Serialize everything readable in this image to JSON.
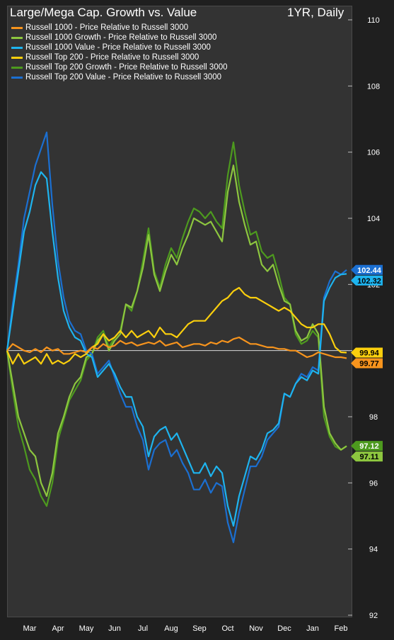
{
  "chart_title": "Large/Mega Cap. Growth vs. Value",
  "chart_period": "1YR, Daily",
  "colors": {
    "background": "#333333",
    "orange": "#f7941d",
    "light_green": "#8dc63f",
    "light_blue": "#1eb4ef",
    "yellow": "#fbcf0d",
    "dark_green": "#4d9a1e",
    "dark_blue": "#1b6fd1"
  },
  "legend": [
    {
      "label": "Russell 1000 - Price Relative to Russell 3000",
      "color": "#f7941d"
    },
    {
      "label": "Russell 1000 Growth - Price Relative to Russell 3000",
      "color": "#8dc63f"
    },
    {
      "label": "Russell 1000 Value - Price Relative to Russell 3000",
      "color": "#1eb4ef"
    },
    {
      "label": "Russell Top 200 - Price Relative to Russell 3000",
      "color": "#fbcf0d"
    },
    {
      "label": "Russell Top 200 Growth - Price Relative to Russell 3000",
      "color": "#4d9a1e"
    },
    {
      "label": "Russell Top 200 Value - Price Relative to Russell 3000",
      "color": "#1b6fd1"
    }
  ],
  "chart_data": {
    "type": "line",
    "x_labels": [
      "Mar",
      "Apr",
      "May",
      "Jun",
      "Jul",
      "Aug",
      "Sep",
      "Oct",
      "Nov",
      "Dec",
      "Jan",
      "Feb"
    ],
    "x_label_positions": [
      0.5,
      1.5,
      2.5,
      3.5,
      4.5,
      5.5,
      6.5,
      7.5,
      8.5,
      9.5,
      10.5,
      11.5
    ],
    "x_range": [
      -0.3,
      11.9
    ],
    "y_ticks": [
      92,
      94,
      96,
      98,
      100,
      102,
      104,
      106,
      108,
      110
    ],
    "ylim": [
      92,
      110
    ],
    "baseline": 100,
    "x": [
      -0.3,
      -0.1,
      0.1,
      0.3,
      0.5,
      0.7,
      0.9,
      1.1,
      1.3,
      1.5,
      1.7,
      1.9,
      2.1,
      2.3,
      2.5,
      2.7,
      2.9,
      3.1,
      3.3,
      3.5,
      3.7,
      3.9,
      4.1,
      4.3,
      4.5,
      4.7,
      4.9,
      5.1,
      5.3,
      5.5,
      5.7,
      5.9,
      6.1,
      6.3,
      6.5,
      6.7,
      6.9,
      7.1,
      7.3,
      7.5,
      7.7,
      7.9,
      8.1,
      8.3,
      8.5,
      8.7,
      8.9,
      9.1,
      9.3,
      9.5,
      9.7,
      9.9,
      10.1,
      10.3,
      10.5,
      10.7,
      10.9,
      11.1,
      11.3,
      11.5,
      11.7
    ],
    "series": [
      {
        "name": "Russell 1000 - Price Relative to Russell 3000",
        "color": "#f7941d",
        "end_value": 99.77,
        "values": [
          100.0,
          100.2,
          100.1,
          100.0,
          99.95,
          100.05,
          99.95,
          100.1,
          100.0,
          100.05,
          99.9,
          99.9,
          99.95,
          100.0,
          99.95,
          100.1,
          100.05,
          100.2,
          100.1,
          100.15,
          100.3,
          100.2,
          100.25,
          100.15,
          100.2,
          100.25,
          100.2,
          100.3,
          100.15,
          100.2,
          100.25,
          100.1,
          100.15,
          100.2,
          100.2,
          100.15,
          100.25,
          100.2,
          100.3,
          100.25,
          100.35,
          100.4,
          100.3,
          100.2,
          100.2,
          100.15,
          100.1,
          100.1,
          100.05,
          100.05,
          100.0,
          100.0,
          99.9,
          99.8,
          99.85,
          99.95,
          99.9,
          99.85,
          99.8,
          99.8,
          99.77
        ]
      },
      {
        "name": "Russell 1000 Growth - Price Relative to Russell 3000",
        "color": "#8dc63f",
        "end_value": 97.11,
        "values": [
          100.0,
          99.0,
          98.0,
          97.5,
          97.0,
          96.8,
          96.0,
          95.6,
          96.3,
          97.5,
          98.0,
          98.6,
          99.0,
          99.2,
          99.8,
          99.9,
          100.3,
          100.5,
          100.0,
          100.3,
          100.5,
          101.4,
          101.3,
          101.8,
          102.5,
          103.5,
          102.3,
          101.8,
          102.4,
          102.9,
          102.6,
          103.1,
          103.5,
          104.0,
          103.9,
          103.8,
          103.9,
          103.6,
          103.3,
          104.8,
          105.6,
          104.5,
          103.8,
          103.2,
          103.3,
          102.6,
          102.4,
          102.6,
          102.0,
          101.5,
          101.4,
          100.6,
          100.3,
          100.4,
          100.8,
          100.5,
          98.3,
          97.5,
          97.2,
          97.0,
          97.11
        ]
      },
      {
        "name": "Russell 1000 Value - Price Relative to Russell 3000",
        "color": "#1eb4ef",
        "end_value": 102.32,
        "values": [
          100.0,
          101.2,
          102.4,
          103.6,
          104.2,
          105.0,
          105.4,
          105.2,
          103.6,
          102.2,
          101.2,
          100.7,
          100.4,
          100.3,
          99.9,
          99.8,
          99.2,
          99.4,
          99.6,
          99.3,
          98.9,
          98.6,
          98.6,
          98.0,
          97.7,
          96.8,
          97.4,
          97.6,
          97.7,
          97.3,
          97.5,
          97.1,
          96.7,
          96.3,
          96.3,
          96.6,
          96.2,
          96.5,
          96.3,
          95.3,
          94.7,
          95.6,
          96.2,
          96.8,
          96.7,
          97.0,
          97.5,
          97.6,
          97.8,
          98.7,
          98.6,
          99.0,
          99.2,
          99.1,
          99.4,
          99.3,
          101.5,
          101.9,
          102.2,
          102.3,
          102.32
        ]
      },
      {
        "name": "Russell Top 200 - Price Relative to Russell 3000",
        "color": "#fbcf0d",
        "end_value": 99.94,
        "values": [
          100.0,
          99.6,
          99.9,
          99.6,
          99.7,
          99.8,
          99.6,
          99.9,
          99.6,
          99.7,
          99.6,
          99.7,
          99.9,
          99.8,
          99.9,
          100.1,
          100.2,
          100.5,
          100.3,
          100.4,
          100.6,
          100.4,
          100.6,
          100.4,
          100.5,
          100.6,
          100.4,
          100.7,
          100.5,
          100.5,
          100.4,
          100.6,
          100.8,
          100.9,
          100.9,
          100.9,
          101.1,
          101.3,
          101.5,
          101.6,
          101.8,
          101.9,
          101.7,
          101.6,
          101.6,
          101.5,
          101.4,
          101.3,
          101.2,
          101.3,
          101.2,
          101.0,
          100.8,
          100.7,
          100.7,
          100.8,
          100.8,
          100.5,
          100.1,
          99.95,
          99.94
        ]
      },
      {
        "name": "Russell Top 200 Growth - Price Relative to Russell 3000",
        "color": "#4d9a1e",
        "end_value": 97.12,
        "values": [
          100.0,
          98.8,
          97.7,
          97.1,
          96.4,
          96.1,
          95.6,
          95.3,
          96.0,
          97.3,
          97.9,
          98.5,
          98.8,
          99.1,
          99.7,
          99.9,
          100.4,
          100.6,
          100.1,
          100.4,
          100.6,
          101.4,
          101.2,
          101.8,
          102.7,
          103.7,
          102.4,
          101.9,
          102.6,
          103.1,
          102.8,
          103.4,
          103.9,
          104.3,
          104.2,
          104.0,
          104.2,
          103.9,
          103.7,
          105.3,
          106.3,
          105.0,
          104.2,
          103.5,
          103.6,
          103.0,
          102.8,
          102.9,
          102.3,
          101.6,
          101.4,
          100.5,
          100.2,
          100.3,
          100.6,
          100.4,
          98.0,
          97.4,
          97.1,
          97.0,
          97.12
        ]
      },
      {
        "name": "Russell Top 200 Value - Price Relative to Russell 3000",
        "color": "#1b6fd1",
        "end_value": 102.44,
        "values": [
          100.0,
          101.4,
          102.6,
          104.0,
          104.8,
          105.6,
          106.1,
          106.6,
          104.4,
          102.7,
          101.6,
          100.9,
          100.6,
          100.5,
          100.0,
          99.9,
          99.3,
          99.5,
          99.7,
          99.2,
          98.7,
          98.3,
          98.3,
          97.7,
          97.3,
          96.4,
          97.0,
          97.2,
          97.3,
          96.8,
          97.0,
          96.6,
          96.3,
          95.8,
          95.8,
          96.1,
          95.7,
          96.0,
          95.9,
          94.8,
          94.2,
          95.1,
          95.8,
          96.5,
          96.5,
          96.8,
          97.3,
          97.5,
          97.7,
          98.7,
          98.6,
          99.0,
          99.3,
          99.2,
          99.5,
          99.4,
          101.6,
          102.1,
          102.4,
          102.3,
          102.44
        ]
      }
    ],
    "end_tags": [
      {
        "value": 102.44,
        "label": "102.44",
        "color": "#1b6fd1",
        "text_color": "#ffffff"
      },
      {
        "value": 102.32,
        "label": "102.32",
        "color": "#1eb4ef",
        "text_color": "#000000"
      },
      {
        "value": 99.94,
        "label": "99.94",
        "color": "#fbcf0d",
        "text_color": "#000000"
      },
      {
        "value": 99.77,
        "label": "99.77",
        "color": "#f7941d",
        "text_color": "#000000"
      },
      {
        "value": 97.12,
        "label": "97.12",
        "color": "#4d9a1e",
        "text_color": "#ffffff"
      },
      {
        "value": 97.11,
        "label": "97.11",
        "color": "#8dc63f",
        "text_color": "#000000"
      }
    ],
    "grid": false,
    "legend_position": "top-left"
  }
}
